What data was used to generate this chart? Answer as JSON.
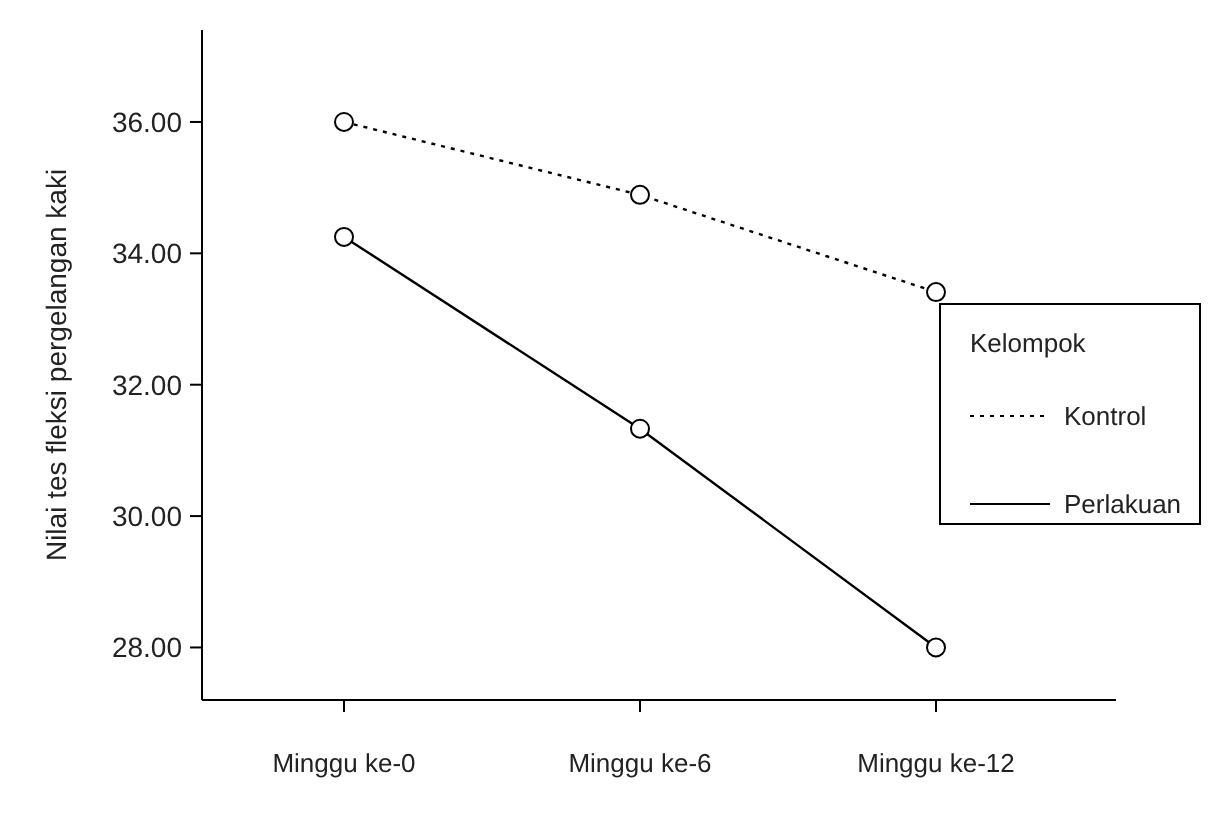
{
  "chart_data": {
    "type": "line",
    "ylabel": "Nilai tes fleksi pergelangan kaki",
    "categories": [
      "Minggu ke-0",
      "Minggu ke-6",
      "Minggu ke-12"
    ],
    "legend_title": "Kelompok",
    "legend": "right",
    "marker": "circle",
    "grid": false,
    "ylim": [
      27.2,
      37.4
    ],
    "yticks": [
      {
        "value": 28,
        "label": "28.00"
      },
      {
        "value": 30,
        "label": "30.00"
      },
      {
        "value": 32,
        "label": "32.00"
      },
      {
        "value": 34,
        "label": "34.00"
      },
      {
        "value": 36,
        "label": "36.00"
      }
    ],
    "series": [
      {
        "name": "Kontrol",
        "color": "#000000",
        "line_style": "dotted",
        "values": [
          36.0,
          34.89,
          33.41
        ]
      },
      {
        "name": "Perlakuan",
        "color": "#000000",
        "line_style": "solid",
        "values": [
          34.25,
          31.33,
          28.0
        ]
      }
    ]
  }
}
